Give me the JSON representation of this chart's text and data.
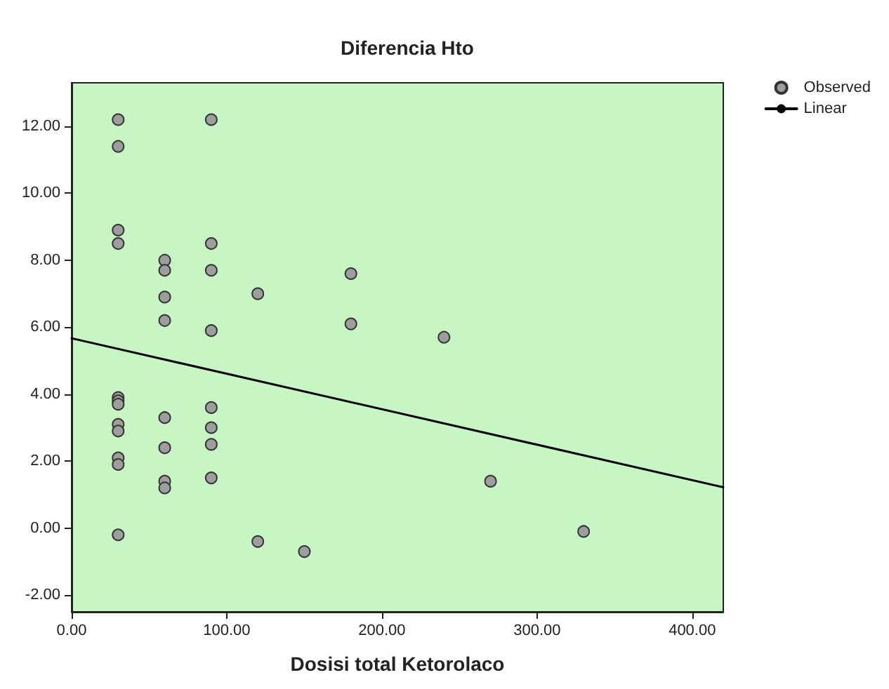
{
  "chart_data": {
    "type": "scatter",
    "title": "Diferencia Hto",
    "xlabel": "Dosisi total Ketorolaco",
    "xlim": [
      0,
      420
    ],
    "xticks": [
      {
        "value": 0,
        "label": "0.00"
      },
      {
        "value": 100,
        "label": "100.00"
      },
      {
        "value": 200,
        "label": "200.00"
      },
      {
        "value": 300,
        "label": "300.00"
      },
      {
        "value": 400,
        "label": "400.00"
      }
    ],
    "ylim": [
      -2.5,
      13.3
    ],
    "yticks": [
      {
        "value": -2,
        "label": "-2.00"
      },
      {
        "value": 0,
        "label": "0.00"
      },
      {
        "value": 2,
        "label": "2.00"
      },
      {
        "value": 4,
        "label": "4.00"
      },
      {
        "value": 6,
        "label": "6.00"
      },
      {
        "value": 8,
        "label": "8.00"
      },
      {
        "value": 10,
        "label": "10.00"
      },
      {
        "value": 12,
        "label": "12.00"
      }
    ],
    "grid": false,
    "legend": "top right",
    "marker": "circle",
    "series": [
      {
        "name": "Observed",
        "color": "#9e9e9e",
        "x": [
          30,
          30,
          30,
          30,
          30,
          30,
          30,
          30,
          30,
          30,
          30,
          30,
          60,
          60,
          60,
          60,
          60,
          60,
          60,
          60,
          90,
          90,
          90,
          90,
          90,
          90,
          90,
          90,
          120,
          120,
          150,
          180,
          180,
          240,
          270,
          330
        ],
        "values": [
          12.2,
          11.4,
          8.9,
          8.5,
          3.9,
          3.8,
          3.7,
          3.1,
          2.9,
          2.1,
          1.9,
          -0.2,
          8.0,
          7.7,
          6.9,
          6.2,
          3.3,
          2.4,
          1.4,
          1.2,
          12.2,
          8.5,
          7.7,
          5.9,
          3.6,
          3.0,
          2.5,
          1.5,
          7.0,
          -0.4,
          -0.7,
          7.6,
          6.1,
          5.7,
          1.4,
          -0.1
        ]
      },
      {
        "name": "Linear",
        "type": "line",
        "color": "#000000",
        "marker": "none",
        "line_style": "solid",
        "x": [
          0,
          420
        ],
        "values": [
          5.67,
          1.22
        ]
      }
    ]
  }
}
